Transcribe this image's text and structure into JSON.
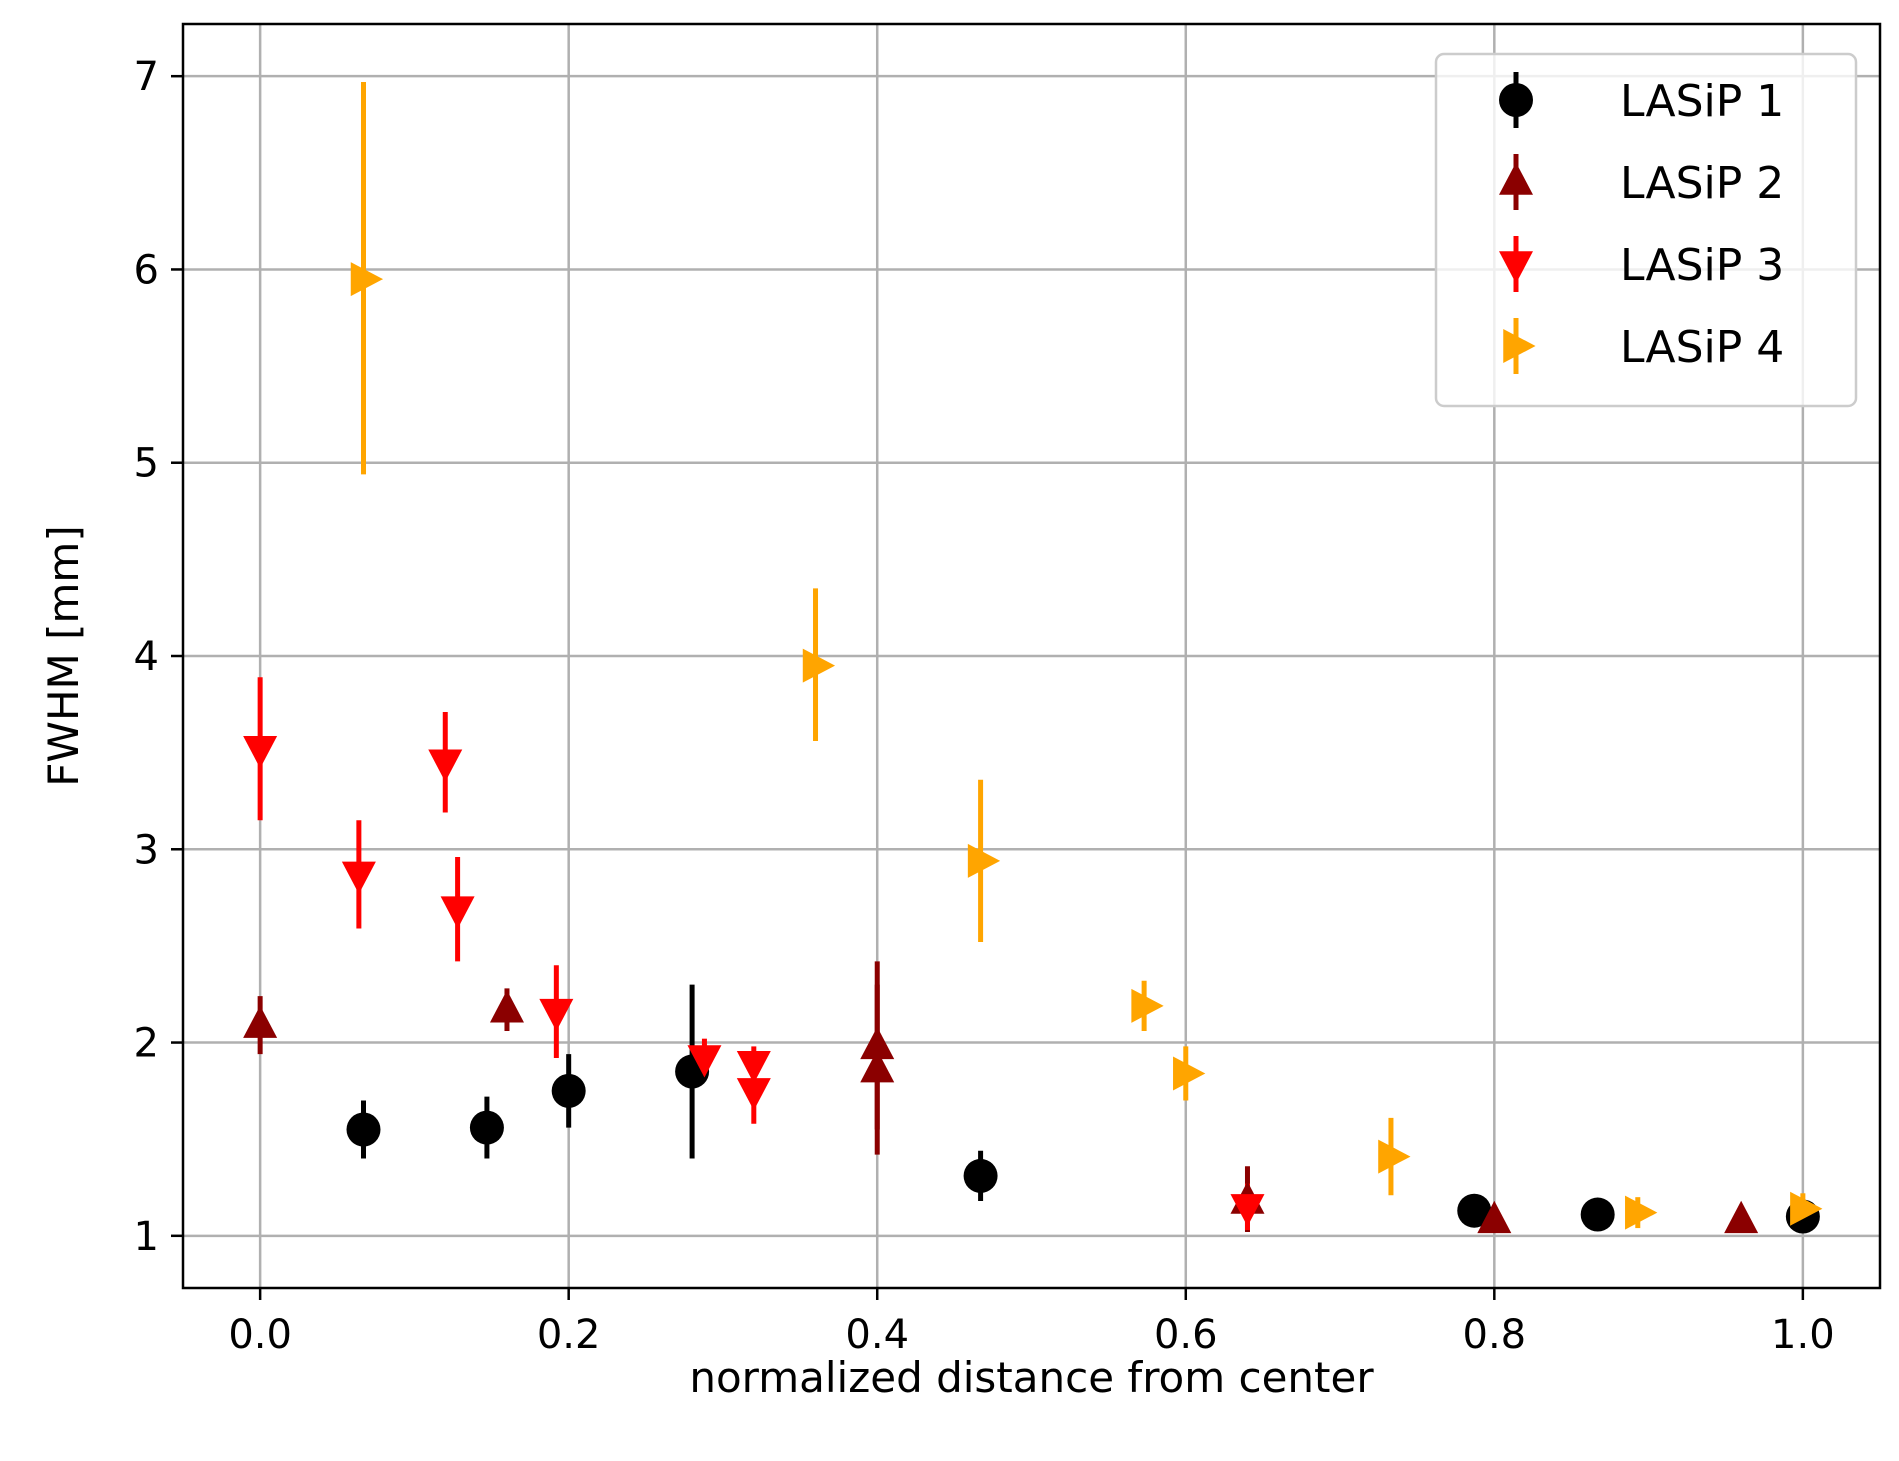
{
  "chart_data": {
    "type": "scatter",
    "title": "",
    "xlabel": "normalized distance from center",
    "ylabel": "FWHM [mm]",
    "xlim": [
      -0.05,
      1.05
    ],
    "ylim": [
      0.73,
      7.27
    ],
    "xticks": [
      0.0,
      0.2,
      0.4,
      0.6,
      0.8,
      1.0
    ],
    "xtick_labels": [
      "0.0",
      "0.2",
      "0.4",
      "0.6",
      "0.8",
      "1.0"
    ],
    "yticks": [
      1,
      2,
      3,
      4,
      5,
      6,
      7
    ],
    "ytick_labels": [
      "1",
      "2",
      "3",
      "4",
      "5",
      "6",
      "7"
    ],
    "grid": true,
    "legend_position": "top-right",
    "series": [
      {
        "name": "LASiP 1",
        "color": "#000000",
        "marker": "circle",
        "points": [
          {
            "x": 0.067,
            "y": 1.55,
            "lo": 1.4,
            "hi": 1.7
          },
          {
            "x": 0.147,
            "y": 1.56,
            "lo": 1.4,
            "hi": 1.72
          },
          {
            "x": 0.2,
            "y": 1.75,
            "lo": 1.56,
            "hi": 1.94
          },
          {
            "x": 0.28,
            "y": 1.85,
            "lo": 1.4,
            "hi": 2.3
          },
          {
            "x": 0.467,
            "y": 1.31,
            "lo": 1.18,
            "hi": 1.44
          },
          {
            "x": 0.787,
            "y": 1.13,
            "lo": 1.08,
            "hi": 1.18
          },
          {
            "x": 0.867,
            "y": 1.11,
            "lo": 1.06,
            "hi": 1.16
          },
          {
            "x": 1.0,
            "y": 1.1,
            "lo": 1.05,
            "hi": 1.15
          }
        ]
      },
      {
        "name": "LASiP 2",
        "color": "#8b0000",
        "marker": "triangle-up",
        "points": [
          {
            "x": 0.0,
            "y": 2.09,
            "lo": 1.94,
            "hi": 2.24
          },
          {
            "x": 0.16,
            "y": 2.17,
            "lo": 2.06,
            "hi": 2.28
          },
          {
            "x": 0.4,
            "y": 1.98,
            "lo": 1.55,
            "hi": 2.42
          },
          {
            "x": 0.4,
            "y": 1.86,
            "lo": 1.42,
            "hi": 2.3
          },
          {
            "x": 0.64,
            "y": 1.18,
            "lo": 1.02,
            "hi": 1.36
          },
          {
            "x": 0.8,
            "y": 1.08,
            "lo": 1.04,
            "hi": 1.12
          },
          {
            "x": 0.96,
            "y": 1.08,
            "lo": 1.04,
            "hi": 1.12
          }
        ]
      },
      {
        "name": "LASiP 3",
        "color": "#ff0000",
        "marker": "triangle-down",
        "points": [
          {
            "x": 0.0,
            "y": 3.52,
            "lo": 3.15,
            "hi": 3.89
          },
          {
            "x": 0.064,
            "y": 2.87,
            "lo": 2.59,
            "hi": 3.15
          },
          {
            "x": 0.12,
            "y": 3.45,
            "lo": 3.19,
            "hi": 3.71
          },
          {
            "x": 0.128,
            "y": 2.69,
            "lo": 2.42,
            "hi": 2.96
          },
          {
            "x": 0.192,
            "y": 2.16,
            "lo": 1.92,
            "hi": 2.4
          },
          {
            "x": 0.288,
            "y": 1.92,
            "lo": 1.83,
            "hi": 2.02
          },
          {
            "x": 0.32,
            "y": 1.89,
            "lo": 1.8,
            "hi": 1.98
          },
          {
            "x": 0.32,
            "y": 1.75,
            "lo": 1.58,
            "hi": 1.92
          },
          {
            "x": 0.64,
            "y": 1.15,
            "lo": 1.03,
            "hi": 1.27
          }
        ]
      },
      {
        "name": "LASiP 4",
        "color": "#ffa500",
        "marker": "triangle-right",
        "points": [
          {
            "x": 0.067,
            "y": 5.95,
            "lo": 4.94,
            "hi": 6.97
          },
          {
            "x": 0.36,
            "y": 3.95,
            "lo": 3.56,
            "hi": 4.35
          },
          {
            "x": 0.467,
            "y": 2.94,
            "lo": 2.52,
            "hi": 3.36
          },
          {
            "x": 0.573,
            "y": 2.19,
            "lo": 2.06,
            "hi": 2.32
          },
          {
            "x": 0.6,
            "y": 1.84,
            "lo": 1.7,
            "hi": 1.98
          },
          {
            "x": 0.733,
            "y": 1.41,
            "lo": 1.21,
            "hi": 1.61
          },
          {
            "x": 0.893,
            "y": 1.12,
            "lo": 1.04,
            "hi": 1.2
          },
          {
            "x": 1.0,
            "y": 1.14,
            "lo": 1.06,
            "hi": 1.22
          }
        ]
      }
    ]
  }
}
